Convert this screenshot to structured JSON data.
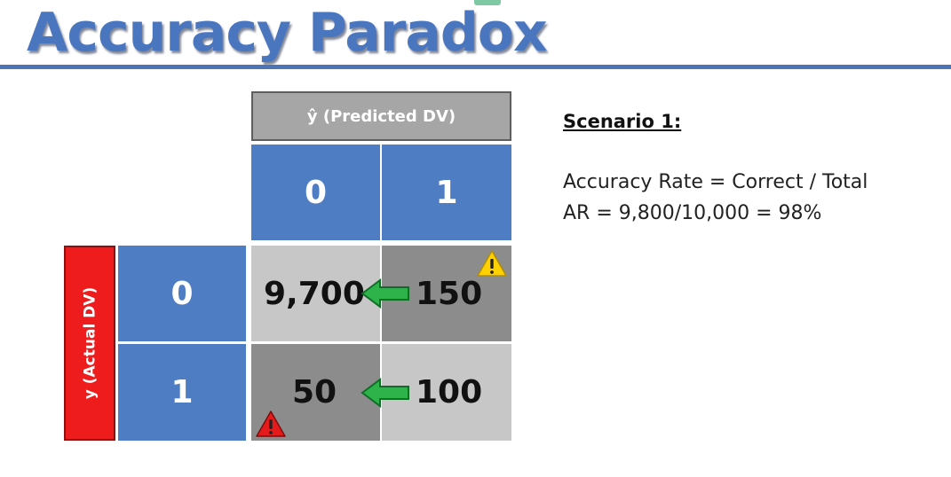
{
  "slide": {
    "title": "Accuracy Paradox"
  },
  "matrix": {
    "predicted_header": "ŷ (Predicted DV)",
    "actual_header": "y (Actual DV)",
    "predicted_classes": [
      "0",
      "1"
    ],
    "actual_classes": [
      "0",
      "1"
    ],
    "cells": {
      "actual0_pred0": "9,700",
      "actual0_pred1": "150",
      "actual1_pred0": "50",
      "actual1_pred1": "100"
    }
  },
  "scenario": {
    "heading": "Scenario 1:",
    "line1": "Accuracy Rate = Correct / Total",
    "line2": "AR = 9,800/10,000 = 98%"
  },
  "colors": {
    "title_blue": "#4a76c0",
    "class_blue": "#4f7dc4",
    "actual_red": "#ee1c1c",
    "arrow_green": "#2db34a",
    "warning_yellow": "#ffd100",
    "warning_red": "#e51b1b"
  },
  "icons": [
    "green-arrow-left-icon",
    "warning-yellow-icon",
    "warning-red-icon"
  ]
}
